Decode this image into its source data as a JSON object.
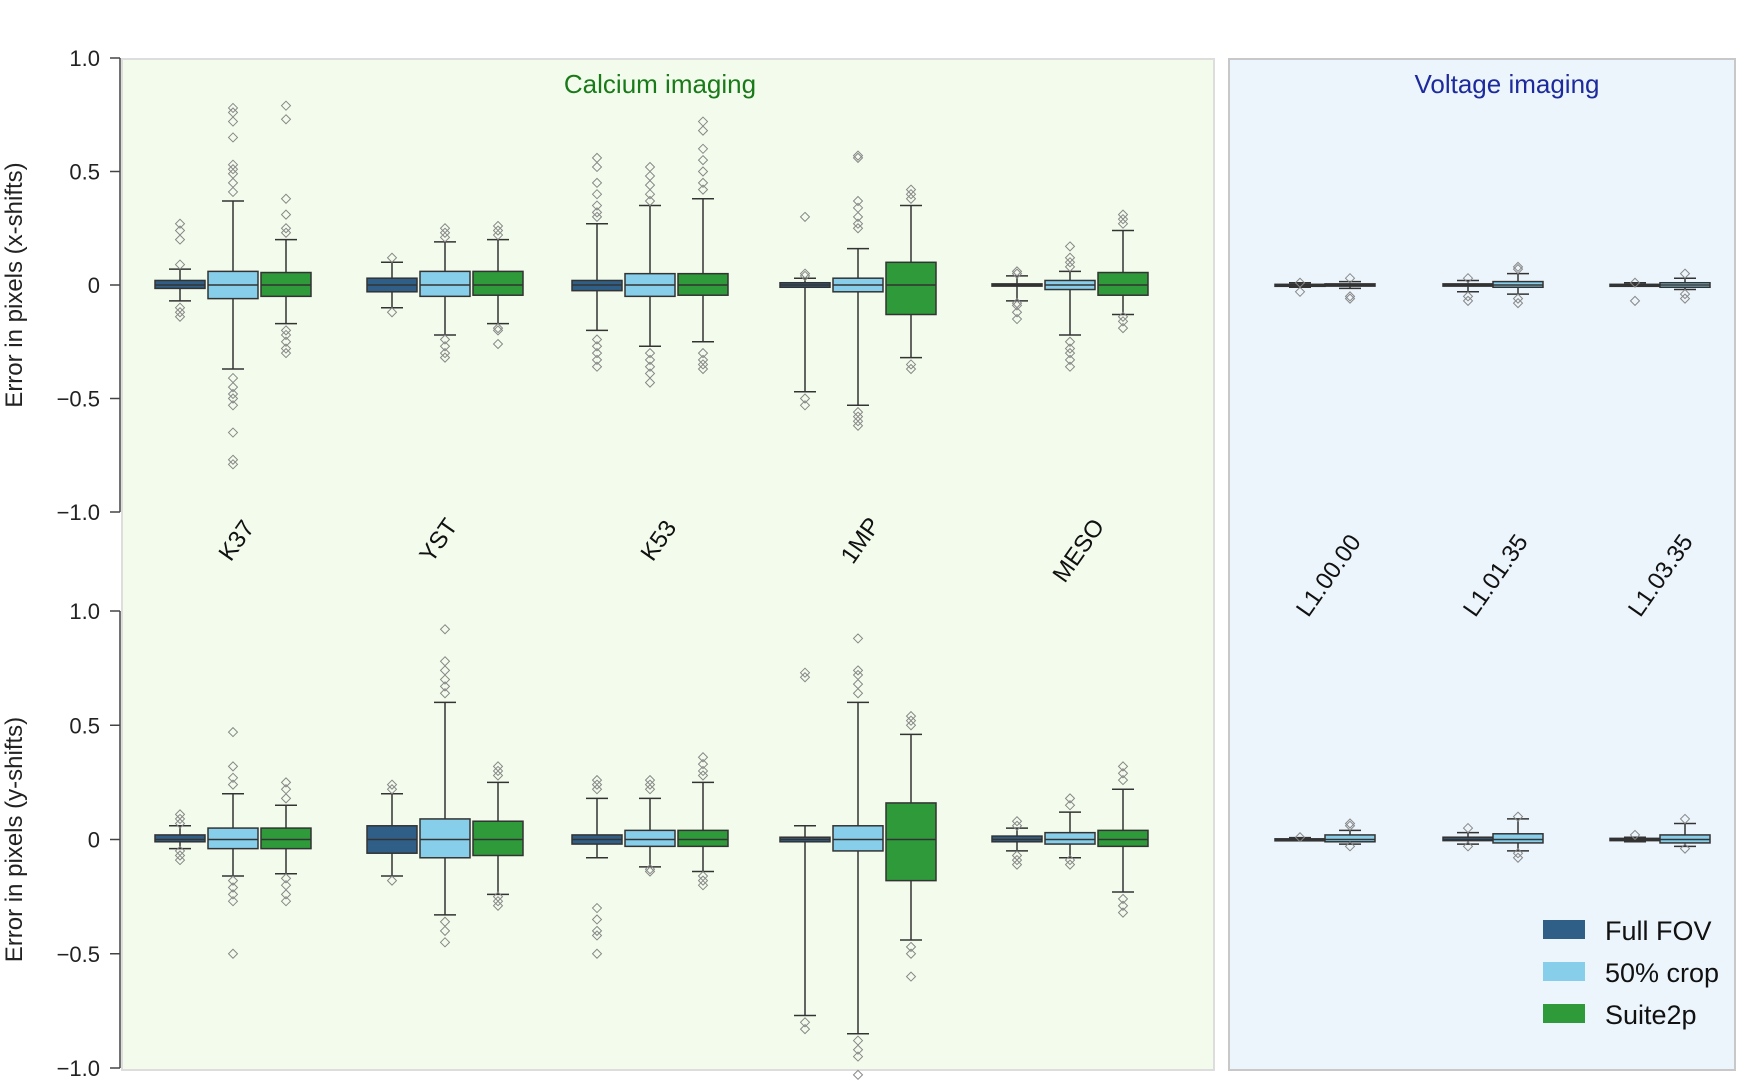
{
  "colors": {
    "full_fov": "#2f5f86",
    "crop_50": "#87ceeb",
    "suite2p": "#2e9a3a",
    "calcium_bg": "#f3fcec",
    "voltage_bg": "#ecf5fc",
    "calcium_title": "#1a7a1a",
    "voltage_title": "#1c2a9c"
  },
  "chart_data": {
    "type": "box",
    "groups": [
      {
        "name": "Calcium imaging",
        "categories": [
          "K37",
          "YST",
          "K53",
          "1MP",
          "MESO"
        ]
      },
      {
        "name": "Voltage imaging",
        "categories": [
          "L1.00.00",
          "L1.01.35",
          "L1.03.35"
        ]
      }
    ],
    "legend": {
      "placement": "bottom-right",
      "entries": [
        "Full FOV",
        "50% crop",
        "Suite2p"
      ]
    },
    "panels": [
      {
        "ylabel": "Error in pixels (x-shifts)",
        "ylim": [
          -1.0,
          1.0
        ],
        "yticks": [
          1.0,
          0.5,
          0,
          -0.5,
          -1.0
        ],
        "yticklabels": [
          "1.0",
          "0.5",
          "0",
          "−0.5",
          "−1.0"
        ],
        "boxes": {
          "K37": [
            {
              "q1": -0.015,
              "med": 0,
              "q3": 0.02,
              "wlo": -0.07,
              "whi": 0.07,
              "fl": [
                0.27,
                0.24,
                0.2,
                0.09,
                -0.1,
                -0.12,
                -0.14
              ]
            },
            {
              "q1": -0.06,
              "med": 0,
              "q3": 0.06,
              "wlo": -0.37,
              "whi": 0.37,
              "fl": [
                0.78,
                0.76,
                0.72,
                0.65,
                0.53,
                0.51,
                0.49,
                0.45,
                0.41,
                -0.41,
                -0.45,
                -0.48,
                -0.5,
                -0.53,
                -0.65,
                -0.77,
                -0.79
              ]
            },
            {
              "q1": -0.05,
              "med": 0,
              "q3": 0.055,
              "wlo": -0.17,
              "whi": 0.2,
              "fl": [
                0.79,
                0.73,
                0.38,
                0.31,
                0.25,
                0.23,
                -0.2,
                -0.22,
                -0.25,
                -0.28,
                -0.3
              ]
            }
          ],
          "YST": [
            {
              "q1": -0.03,
              "med": 0,
              "q3": 0.03,
              "wlo": -0.1,
              "whi": 0.1,
              "fl": [
                0.12,
                -0.12
              ]
            },
            {
              "q1": -0.05,
              "med": 0,
              "q3": 0.06,
              "wlo": -0.22,
              "whi": 0.19,
              "fl": [
                0.25,
                0.23,
                0.21,
                -0.24,
                -0.27,
                -0.3,
                -0.32
              ]
            },
            {
              "q1": -0.045,
              "med": 0,
              "q3": 0.06,
              "wlo": -0.17,
              "whi": 0.2,
              "fl": [
                0.26,
                0.24,
                0.22,
                -0.19,
                -0.2,
                -0.26
              ]
            }
          ],
          "K53": [
            {
              "q1": -0.025,
              "med": 0,
              "q3": 0.02,
              "wlo": -0.2,
              "whi": 0.27,
              "fl": [
                0.56,
                0.52,
                0.45,
                0.4,
                0.35,
                0.32,
                0.3,
                -0.24,
                -0.27,
                -0.3,
                -0.33,
                -0.36
              ]
            },
            {
              "q1": -0.05,
              "med": 0,
              "q3": 0.05,
              "wlo": -0.27,
              "whi": 0.35,
              "fl": [
                0.52,
                0.48,
                0.44,
                0.4,
                0.37,
                -0.3,
                -0.33,
                -0.36,
                -0.39,
                -0.43
              ]
            },
            {
              "q1": -0.045,
              "med": 0,
              "q3": 0.05,
              "wlo": -0.25,
              "whi": 0.38,
              "fl": [
                0.72,
                0.68,
                0.6,
                0.55,
                0.5,
                0.45,
                0.42,
                -0.3,
                -0.33,
                -0.35,
                -0.37
              ]
            }
          ],
          "1MP": [
            {
              "q1": -0.01,
              "med": 0,
              "q3": 0.01,
              "wlo": -0.47,
              "whi": 0.03,
              "fl": [
                0.3,
                0.05,
                0.04,
                -0.5,
                -0.53
              ]
            },
            {
              "q1": -0.03,
              "med": 0,
              "q3": 0.03,
              "wlo": -0.53,
              "whi": 0.16,
              "fl": [
                0.57,
                0.56,
                0.37,
                0.34,
                0.3,
                0.27,
                0.25,
                -0.56,
                -0.58,
                -0.6,
                -0.62
              ]
            },
            {
              "q1": -0.13,
              "med": 0,
              "q3": 0.1,
              "wlo": -0.32,
              "whi": 0.35,
              "fl": [
                0.42,
                0.4,
                0.38,
                -0.35,
                -0.37
              ]
            }
          ],
          "MESO": [
            {
              "q1": -0.005,
              "med": 0,
              "q3": 0.005,
              "wlo": -0.07,
              "whi": 0.04,
              "fl": [
                0.06,
                0.05,
                -0.08,
                -0.09,
                -0.12,
                -0.15
              ]
            },
            {
              "q1": -0.02,
              "med": 0,
              "q3": 0.02,
              "wlo": -0.22,
              "whi": 0.06,
              "fl": [
                0.17,
                0.12,
                0.1,
                0.08,
                -0.25,
                -0.28,
                -0.3,
                -0.33,
                -0.36
              ]
            },
            {
              "q1": -0.045,
              "med": 0,
              "q3": 0.055,
              "wlo": -0.13,
              "whi": 0.24,
              "fl": [
                0.31,
                0.29,
                0.27,
                -0.14,
                -0.16,
                -0.19
              ]
            }
          ],
          "L1.00.00": [
            {
              "q1": -0.003,
              "med": 0,
              "q3": 0.003,
              "wlo": -0.01,
              "whi": 0.01,
              "fl": [
                0.01,
                -0.03
              ]
            },
            {
              "q1": -0.005,
              "med": 0,
              "q3": 0.005,
              "wlo": -0.015,
              "whi": 0.015,
              "fl": [
                0.03,
                -0.05,
                -0.06
              ]
            }
          ],
          "L1.01.35": [
            {
              "q1": -0.005,
              "med": 0,
              "q3": 0.005,
              "wlo": -0.03,
              "whi": 0.02,
              "fl": [
                0.03,
                -0.05,
                -0.07
              ]
            },
            {
              "q1": -0.01,
              "med": 0,
              "q3": 0.015,
              "wlo": -0.04,
              "whi": 0.05,
              "fl": [
                0.08,
                0.07,
                -0.06,
                -0.08
              ]
            }
          ],
          "L1.03.35": [
            {
              "q1": -0.003,
              "med": 0,
              "q3": 0.003,
              "wlo": -0.005,
              "whi": 0.01,
              "fl": [
                0.01,
                -0.07
              ]
            },
            {
              "q1": -0.01,
              "med": 0,
              "q3": 0.01,
              "wlo": -0.02,
              "whi": 0.03,
              "fl": [
                0.05,
                -0.04,
                -0.06
              ]
            }
          ]
        }
      },
      {
        "ylabel": "Error in pixels (y-shifts)",
        "ylim": [
          -1.0,
          1.0
        ],
        "yticks": [
          1.0,
          0.5,
          0,
          -0.5,
          -1.0
        ],
        "yticklabels": [
          "1.0",
          "0.5",
          "0",
          "−0.5",
          "−1.0"
        ],
        "boxes": {
          "K37": [
            {
              "q1": -0.01,
              "med": 0,
              "q3": 0.02,
              "wlo": -0.04,
              "whi": 0.06,
              "fl": [
                0.11,
                0.09,
                0.07,
                -0.05,
                -0.07,
                -0.09
              ]
            },
            {
              "q1": -0.04,
              "med": 0,
              "q3": 0.05,
              "wlo": -0.16,
              "whi": 0.2,
              "fl": [
                0.47,
                0.32,
                0.27,
                0.24,
                -0.18,
                -0.21,
                -0.24,
                -0.27,
                -0.5
              ]
            },
            {
              "q1": -0.04,
              "med": 0,
              "q3": 0.05,
              "wlo": -0.15,
              "whi": 0.15,
              "fl": [
                0.25,
                0.22,
                0.18,
                -0.17,
                -0.2,
                -0.24,
                -0.27
              ]
            }
          ],
          "YST": [
            {
              "q1": -0.06,
              "med": 0,
              "q3": 0.06,
              "wlo": -0.16,
              "whi": 0.2,
              "fl": [
                0.24,
                0.22,
                -0.18
              ]
            },
            {
              "q1": -0.08,
              "med": 0,
              "q3": 0.09,
              "wlo": -0.33,
              "whi": 0.6,
              "fl": [
                0.92,
                0.78,
                0.74,
                0.7,
                0.67,
                0.64,
                -0.36,
                -0.4,
                -0.45
              ]
            },
            {
              "q1": -0.07,
              "med": 0,
              "q3": 0.08,
              "wlo": -0.24,
              "whi": 0.25,
              "fl": [
                0.32,
                0.3,
                0.28,
                -0.25,
                -0.27,
                -0.29
              ]
            }
          ],
          "K53": [
            {
              "q1": -0.02,
              "med": 0,
              "q3": 0.02,
              "wlo": -0.08,
              "whi": 0.18,
              "fl": [
                0.26,
                0.24,
                0.22,
                -0.3,
                -0.35,
                -0.4,
                -0.42,
                -0.5
              ]
            },
            {
              "q1": -0.03,
              "med": 0,
              "q3": 0.04,
              "wlo": -0.12,
              "whi": 0.18,
              "fl": [
                0.26,
                0.24,
                0.22,
                -0.13,
                -0.14
              ]
            },
            {
              "q1": -0.03,
              "med": 0,
              "q3": 0.04,
              "wlo": -0.14,
              "whi": 0.25,
              "fl": [
                0.36,
                0.33,
                0.3,
                0.28,
                -0.16,
                -0.18,
                -0.2
              ]
            }
          ],
          "1MP": [
            {
              "q1": -0.01,
              "med": 0,
              "q3": 0.01,
              "wlo": -0.77,
              "whi": 0.06,
              "fl": [
                0.73,
                0.71,
                -0.8,
                -0.83
              ]
            },
            {
              "q1": -0.05,
              "med": 0,
              "q3": 0.06,
              "wlo": -0.85,
              "whi": 0.6,
              "fl": [
                0.88,
                0.74,
                0.72,
                0.68,
                0.64,
                -0.88,
                -0.92,
                -0.95,
                -1.03
              ]
            },
            {
              "q1": -0.18,
              "med": 0,
              "q3": 0.16,
              "wlo": -0.44,
              "whi": 0.46,
              "fl": [
                0.54,
                0.52,
                0.5,
                -0.47,
                -0.5,
                -0.6
              ]
            }
          ],
          "MESO": [
            {
              "q1": -0.01,
              "med": 0,
              "q3": 0.015,
              "wlo": -0.05,
              "whi": 0.05,
              "fl": [
                0.08,
                0.06,
                -0.07,
                -0.09,
                -0.11
              ]
            },
            {
              "q1": -0.02,
              "med": 0,
              "q3": 0.03,
              "wlo": -0.08,
              "whi": 0.12,
              "fl": [
                0.18,
                0.15,
                -0.09,
                -0.11
              ]
            },
            {
              "q1": -0.03,
              "med": 0,
              "q3": 0.04,
              "wlo": -0.23,
              "whi": 0.22,
              "fl": [
                0.32,
                0.29,
                0.26,
                -0.26,
                -0.29,
                -0.32
              ]
            }
          ],
          "L1.00.00": [
            {
              "q1": -0.002,
              "med": 0,
              "q3": 0.003,
              "wlo": -0.005,
              "whi": 0.008,
              "fl": [
                0.01
              ]
            },
            {
              "q1": -0.01,
              "med": 0,
              "q3": 0.02,
              "wlo": -0.02,
              "whi": 0.04,
              "fl": [
                0.07,
                0.06,
                -0.03
              ]
            }
          ],
          "L1.01.35": [
            {
              "q1": -0.005,
              "med": 0,
              "q3": 0.01,
              "wlo": -0.02,
              "whi": 0.03,
              "fl": [
                0.05,
                -0.03
              ]
            },
            {
              "q1": -0.015,
              "med": 0,
              "q3": 0.025,
              "wlo": -0.05,
              "whi": 0.09,
              "fl": [
                0.1,
                -0.06,
                -0.08
              ]
            }
          ],
          "L1.03.35": [
            {
              "q1": -0.005,
              "med": 0,
              "q3": 0.005,
              "wlo": -0.01,
              "whi": 0.01,
              "fl": [
                0.02
              ]
            },
            {
              "q1": -0.015,
              "med": 0,
              "q3": 0.02,
              "wlo": -0.03,
              "whi": 0.07,
              "fl": [
                0.09,
                -0.04
              ]
            }
          ]
        }
      }
    ]
  }
}
